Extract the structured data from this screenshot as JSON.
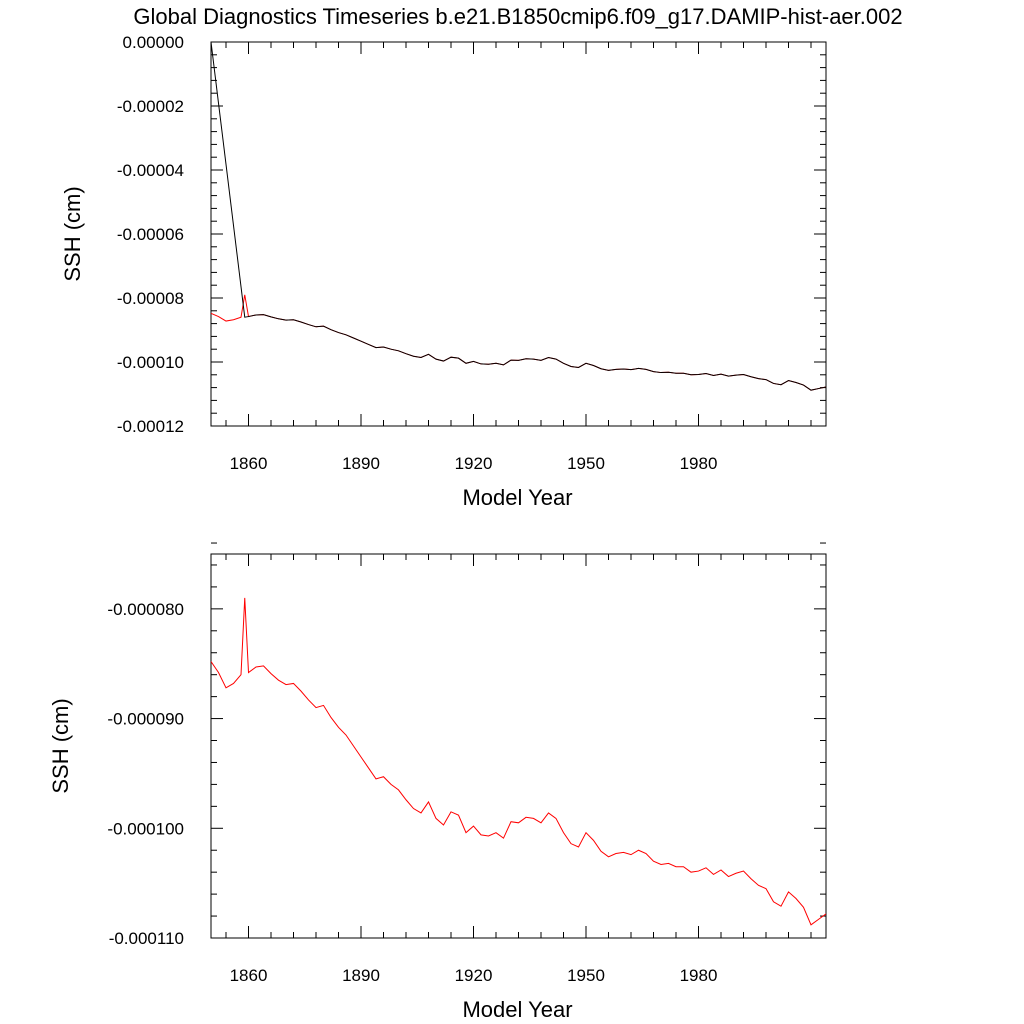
{
  "title": "Global Diagnostics Timeseries b.e21.B1850cmip6.f09_g17.DAMIP-hist-aer.002",
  "colors": {
    "series_red": "#ff0000",
    "series_black": "#000000"
  },
  "chart_data": [
    {
      "type": "line",
      "xlabel": "Model Year",
      "ylabel": "SSH (cm)",
      "xlim": [
        1850,
        2014
      ],
      "ylim": [
        -0.00012,
        0.0
      ],
      "xticks": [
        1860,
        1890,
        1920,
        1950,
        1980
      ],
      "xtick_labels": [
        "1860",
        "1890",
        "1920",
        "1950",
        "1980"
      ],
      "yticks": [
        0.0,
        -2e-05,
        -4e-05,
        -6e-05,
        -8e-05,
        -0.0001,
        -0.00012
      ],
      "ytick_labels": [
        "0.00000",
        "-0.00002",
        "-0.00004",
        "-0.00006",
        "-0.00008",
        "-0.00010",
        "-0.00012"
      ],
      "series": [
        {
          "color": "#ff0000",
          "x": [
            1850,
            1852,
            1854,
            1856,
            1858,
            1859,
            1860,
            1862,
            1864,
            1866,
            1868,
            1870,
            1872,
            1874,
            1876,
            1878,
            1880,
            1882,
            1884,
            1886,
            1888,
            1890,
            1892,
            1894,
            1896,
            1898,
            1900,
            1902,
            1904,
            1906,
            1908,
            1910,
            1912,
            1914,
            1916,
            1918,
            1920,
            1922,
            1924,
            1926,
            1928,
            1930,
            1932,
            1934,
            1936,
            1938,
            1940,
            1942,
            1944,
            1946,
            1948,
            1950,
            1952,
            1954,
            1956,
            1958,
            1960,
            1962,
            1964,
            1966,
            1968,
            1970,
            1972,
            1974,
            1976,
            1978,
            1980,
            1982,
            1984,
            1986,
            1988,
            1990,
            1992,
            1994,
            1996,
            1998,
            2000,
            2002,
            2004,
            2006,
            2008,
            2010,
            2012,
            2014
          ],
          "y": [
            -8.48e-05,
            -8.58e-05,
            -8.72e-05,
            -8.68e-05,
            -8.6e-05,
            -7.9e-05,
            -8.58e-05,
            -8.53e-05,
            -8.52e-05,
            -8.59e-05,
            -8.65e-05,
            -8.69e-05,
            -8.68e-05,
            -8.75e-05,
            -8.83e-05,
            -8.9e-05,
            -8.88e-05,
            -8.99e-05,
            -9.08e-05,
            -9.15e-05,
            -9.25e-05,
            -9.35e-05,
            -9.45e-05,
            -9.55e-05,
            -9.53e-05,
            -9.6e-05,
            -9.65e-05,
            -9.74e-05,
            -9.82e-05,
            -9.86e-05,
            -9.76e-05,
            -9.91e-05,
            -9.97e-05,
            -9.85e-05,
            -9.88e-05,
            -0.0001004,
            -9.98e-05,
            -0.0001006,
            -0.0001007,
            -0.0001004,
            -0.0001009,
            -9.94e-05,
            -9.95e-05,
            -9.9e-05,
            -9.91e-05,
            -9.95e-05,
            -9.86e-05,
            -9.91e-05,
            -0.0001004,
            -0.0001014,
            -0.0001017,
            -0.0001004,
            -0.0001011,
            -0.0001021,
            -0.0001026,
            -0.0001023,
            -0.0001022,
            -0.0001024,
            -0.000102,
            -0.0001023,
            -0.000103,
            -0.0001033,
            -0.0001032,
            -0.0001035,
            -0.0001035,
            -0.000104,
            -0.0001039,
            -0.0001036,
            -0.0001042,
            -0.0001038,
            -0.0001044,
            -0.0001041,
            -0.0001039,
            -0.0001046,
            -0.0001052,
            -0.0001055,
            -0.0001067,
            -0.0001071,
            -0.0001058,
            -0.0001064,
            -0.0001072,
            -0.0001088,
            -0.0001083,
            -0.0001078
          ]
        },
        {
          "color": "#000000",
          "x": [
            1850,
            1859,
            1860,
            1862,
            1864,
            1866,
            1868,
            1870,
            1872,
            1874,
            1876,
            1878,
            1880,
            1882,
            1884,
            1886,
            1888,
            1890,
            1892,
            1894,
            1896,
            1898,
            1900,
            1902,
            1904,
            1906,
            1908,
            1910,
            1912,
            1914,
            1916,
            1918,
            1920,
            1922,
            1924,
            1926,
            1928,
            1930,
            1932,
            1934,
            1936,
            1938,
            1940,
            1942,
            1944,
            1946,
            1948,
            1950,
            1952,
            1954,
            1956,
            1958,
            1960,
            1962,
            1964,
            1966,
            1968,
            1970,
            1972,
            1974,
            1976,
            1978,
            1980,
            1982,
            1984,
            1986,
            1988,
            1990,
            1992,
            1994,
            1996,
            1998,
            2000,
            2002,
            2004,
            2006,
            2008,
            2010,
            2012,
            2014
          ],
          "y": [
            0.0,
            -8.6e-05,
            -8.58e-05,
            -8.53e-05,
            -8.52e-05,
            -8.59e-05,
            -8.65e-05,
            -8.69e-05,
            -8.68e-05,
            -8.75e-05,
            -8.83e-05,
            -8.9e-05,
            -8.88e-05,
            -8.99e-05,
            -9.08e-05,
            -9.15e-05,
            -9.25e-05,
            -9.35e-05,
            -9.45e-05,
            -9.55e-05,
            -9.53e-05,
            -9.6e-05,
            -9.65e-05,
            -9.74e-05,
            -9.82e-05,
            -9.86e-05,
            -9.76e-05,
            -9.91e-05,
            -9.97e-05,
            -9.85e-05,
            -9.88e-05,
            -0.0001004,
            -9.98e-05,
            -0.0001006,
            -0.0001007,
            -0.0001004,
            -0.0001009,
            -9.94e-05,
            -9.95e-05,
            -9.9e-05,
            -9.91e-05,
            -9.95e-05,
            -9.86e-05,
            -9.91e-05,
            -0.0001004,
            -0.0001014,
            -0.0001017,
            -0.0001004,
            -0.0001011,
            -0.0001021,
            -0.0001026,
            -0.0001023,
            -0.0001022,
            -0.0001024,
            -0.000102,
            -0.0001023,
            -0.000103,
            -0.0001033,
            -0.0001032,
            -0.0001035,
            -0.0001035,
            -0.000104,
            -0.0001039,
            -0.0001036,
            -0.0001042,
            -0.0001038,
            -0.0001044,
            -0.0001041,
            -0.0001039,
            -0.0001046,
            -0.0001052,
            -0.0001055,
            -0.0001067,
            -0.0001071,
            -0.0001058,
            -0.0001064,
            -0.0001072,
            -0.0001088,
            -0.0001083,
            -0.0001078
          ]
        }
      ]
    },
    {
      "type": "line",
      "xlabel": "Model Year",
      "ylabel": "SSH (cm)",
      "xlim": [
        1850,
        2014
      ],
      "ylim": [
        -0.00011,
        -7.5e-05
      ],
      "xticks": [
        1860,
        1890,
        1920,
        1950,
        1980
      ],
      "xtick_labels": [
        "1860",
        "1890",
        "1920",
        "1950",
        "1980"
      ],
      "yticks": [
        -8e-05,
        -9e-05,
        -0.0001,
        -0.00011
      ],
      "ytick_labels": [
        "-0.000080",
        "-0.000090",
        "-0.000100",
        "-0.000110"
      ],
      "series": [
        {
          "color": "#ff0000",
          "x": [
            1850,
            1852,
            1854,
            1856,
            1858,
            1859,
            1860,
            1862,
            1864,
            1866,
            1868,
            1870,
            1872,
            1874,
            1876,
            1878,
            1880,
            1882,
            1884,
            1886,
            1888,
            1890,
            1892,
            1894,
            1896,
            1898,
            1900,
            1902,
            1904,
            1906,
            1908,
            1910,
            1912,
            1914,
            1916,
            1918,
            1920,
            1922,
            1924,
            1926,
            1928,
            1930,
            1932,
            1934,
            1936,
            1938,
            1940,
            1942,
            1944,
            1946,
            1948,
            1950,
            1952,
            1954,
            1956,
            1958,
            1960,
            1962,
            1964,
            1966,
            1968,
            1970,
            1972,
            1974,
            1976,
            1978,
            1980,
            1982,
            1984,
            1986,
            1988,
            1990,
            1992,
            1994,
            1996,
            1998,
            2000,
            2002,
            2004,
            2006,
            2008,
            2010,
            2012,
            2014
          ],
          "y": [
            -8.48e-05,
            -8.58e-05,
            -8.72e-05,
            -8.68e-05,
            -8.6e-05,
            -7.9e-05,
            -8.58e-05,
            -8.53e-05,
            -8.52e-05,
            -8.59e-05,
            -8.65e-05,
            -8.69e-05,
            -8.68e-05,
            -8.75e-05,
            -8.83e-05,
            -8.9e-05,
            -8.88e-05,
            -8.99e-05,
            -9.08e-05,
            -9.15e-05,
            -9.25e-05,
            -9.35e-05,
            -9.45e-05,
            -9.55e-05,
            -9.53e-05,
            -9.6e-05,
            -9.65e-05,
            -9.74e-05,
            -9.82e-05,
            -9.86e-05,
            -9.76e-05,
            -9.91e-05,
            -9.97e-05,
            -9.85e-05,
            -9.88e-05,
            -0.0001004,
            -9.98e-05,
            -0.0001006,
            -0.0001007,
            -0.0001004,
            -0.0001009,
            -9.94e-05,
            -9.95e-05,
            -9.9e-05,
            -9.91e-05,
            -9.95e-05,
            -9.86e-05,
            -9.91e-05,
            -0.0001004,
            -0.0001014,
            -0.0001017,
            -0.0001004,
            -0.0001011,
            -0.0001021,
            -0.0001026,
            -0.0001023,
            -0.0001022,
            -0.0001024,
            -0.000102,
            -0.0001023,
            -0.000103,
            -0.0001033,
            -0.0001032,
            -0.0001035,
            -0.0001035,
            -0.000104,
            -0.0001039,
            -0.0001036,
            -0.0001042,
            -0.0001038,
            -0.0001044,
            -0.0001041,
            -0.0001039,
            -0.0001046,
            -0.0001052,
            -0.0001055,
            -0.0001067,
            -0.0001071,
            -0.0001058,
            -0.0001064,
            -0.0001072,
            -0.0001088,
            -0.0001083,
            -0.0001078
          ]
        }
      ]
    }
  ]
}
